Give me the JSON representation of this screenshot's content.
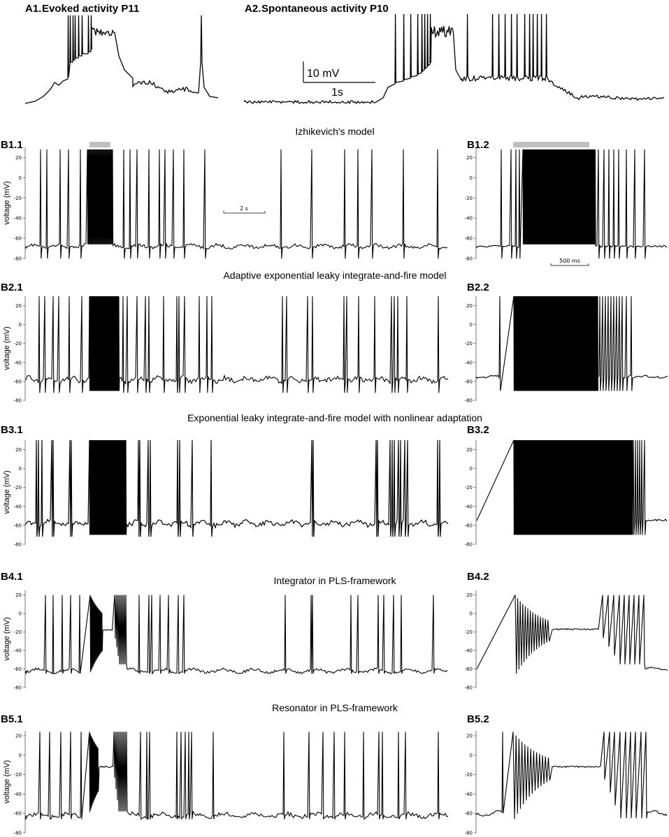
{
  "chart_data": [
    {
      "id": "A1",
      "type": "line",
      "panel_label": "A1.",
      "title": "Evoked activity P11",
      "series": [
        {
          "values": "trace"
        }
      ],
      "x_unit": "s",
      "y_unit": "mV"
    },
    {
      "id": "A2",
      "type": "line",
      "panel_label": "A2.",
      "title": "Spontaneous activity P10",
      "series": [
        {
          "values": "trace"
        }
      ],
      "scale_bar": {
        "y_value": 10,
        "y_label": "10 mV",
        "x_value": 1,
        "x_label": "1s"
      }
    },
    {
      "id": "B1",
      "type": "line",
      "section_title": "Izhikevich's model",
      "panels": [
        {
          "panel_label": "B1.1",
          "ylabel": "voltage (mV)",
          "ylim": [
            -80,
            30
          ],
          "yticks": [
            20,
            0,
            -20,
            -40,
            -60,
            -80
          ],
          "stimulus_bar": true,
          "scale_bar": {
            "x_value": 2,
            "x_label": "2 s"
          }
        },
        {
          "panel_label": "B1.2",
          "ylim": [
            -80,
            30
          ],
          "yticks": [
            20,
            0,
            -20,
            -40,
            -60,
            -80
          ],
          "stimulus_bar": true,
          "scale_bar": {
            "x_value": 500,
            "x_label": "500 ms"
          }
        }
      ]
    },
    {
      "id": "B2",
      "type": "line",
      "section_title": "Adaptive exponential leaky integrate-and-fire model",
      "panels": [
        {
          "panel_label": "B2.1",
          "ylabel": "voltage (mV)",
          "ylim": [
            -80,
            30
          ],
          "yticks": [
            20,
            0,
            -20,
            -40,
            -60,
            -80
          ]
        },
        {
          "panel_label": "B2.2",
          "ylim": [
            -80,
            30
          ],
          "yticks": [
            20,
            0,
            -20,
            -40,
            -60,
            -80
          ]
        }
      ]
    },
    {
      "id": "B3",
      "type": "line",
      "section_title": "Exponential leaky integrate-and-fire model with nonlinear adaptation",
      "panels": [
        {
          "panel_label": "B3.1",
          "ylabel": "voltage (mV)",
          "ylim": [
            -80,
            30
          ],
          "yticks": [
            20,
            0,
            -20,
            -40,
            -60,
            -80
          ]
        },
        {
          "panel_label": "B3.2",
          "ylim": [
            -80,
            30
          ],
          "yticks": [
            20,
            0,
            -20,
            -40,
            -60,
            -80
          ]
        }
      ]
    },
    {
      "id": "B4",
      "type": "line",
      "section_title": "Integrator in PLS-framework",
      "panels": [
        {
          "panel_label": "B4.1",
          "ylabel": "voltage (mV)",
          "ylim": [
            -80,
            25
          ],
          "yticks": [
            20,
            0,
            -20,
            -40,
            -60,
            -80
          ]
        },
        {
          "panel_label": "B4.2",
          "ylim": [
            -80,
            25
          ],
          "yticks": [
            20,
            0,
            -20,
            -40,
            -60,
            -80
          ]
        }
      ]
    },
    {
      "id": "B5",
      "type": "line",
      "section_title": "Resonator in PLS-framework",
      "panels": [
        {
          "panel_label": "B5.1",
          "ylabel": "voltage (mV)",
          "ylim": [
            -80,
            25
          ],
          "yticks": [
            20,
            0,
            -20,
            -40,
            -60,
            -80
          ]
        },
        {
          "panel_label": "B5.2",
          "ylim": [
            -80,
            25
          ],
          "yticks": [
            20,
            0,
            -20,
            -40,
            -60,
            -80
          ]
        }
      ]
    }
  ],
  "colors": {
    "trace": "#000000",
    "stimulus_bar": "#c0c0c0",
    "axis": "#555555"
  }
}
